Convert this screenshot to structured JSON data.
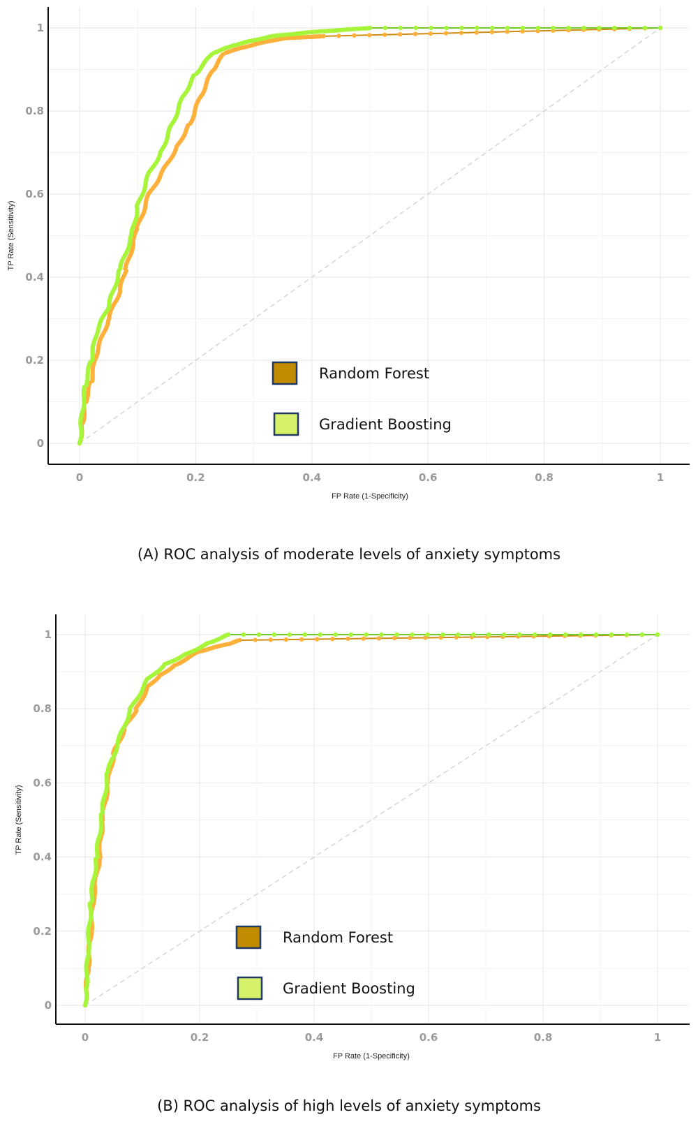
{
  "chart_data": [
    {
      "type": "line",
      "caption": "(A) ROC analysis of moderate levels of anxiety symptoms",
      "xlabel": "FP Rate (1-Specificity)",
      "ylabel": "TP Rate (Sensitivity)",
      "xlim": [
        0,
        1
      ],
      "ylim": [
        0,
        1
      ],
      "xticks": [
        "0",
        "0.2",
        "0.4",
        "0.6",
        "0.8",
        "1"
      ],
      "yticks": [
        "0",
        "0.2",
        "0.4",
        "0.6",
        "0.8",
        "1"
      ],
      "grid": true,
      "legend_placement": "bottom-center",
      "reference_line": "diagonal dashed",
      "series": [
        {
          "name": "Random Forest",
          "color": "#FFB03B",
          "legend_color": "#C08B00",
          "x": [
            0,
            0.005,
            0.01,
            0.02,
            0.03,
            0.05,
            0.07,
            0.08,
            0.1,
            0.12,
            0.15,
            0.17,
            0.19,
            0.21,
            0.23,
            0.25,
            0.3,
            0.35,
            0.42,
            1
          ],
          "y": [
            0,
            0.05,
            0.1,
            0.15,
            0.22,
            0.3,
            0.37,
            0.42,
            0.52,
            0.6,
            0.67,
            0.72,
            0.77,
            0.84,
            0.9,
            0.94,
            0.96,
            0.975,
            0.98,
            1
          ]
        },
        {
          "name": "Gradient Boosting",
          "color": "#A6F53A",
          "legend_color": "#D6F26B",
          "x": [
            0,
            0.005,
            0.01,
            0.02,
            0.03,
            0.05,
            0.07,
            0.09,
            0.1,
            0.12,
            0.14,
            0.16,
            0.18,
            0.2,
            0.23,
            0.27,
            0.33,
            0.4,
            0.5,
            1
          ],
          "y": [
            0,
            0.08,
            0.14,
            0.2,
            0.27,
            0.33,
            0.42,
            0.5,
            0.57,
            0.65,
            0.7,
            0.77,
            0.84,
            0.89,
            0.94,
            0.96,
            0.98,
            0.99,
            1,
            1
          ]
        }
      ]
    },
    {
      "type": "line",
      "caption": "(B) ROC analysis of high levels of anxiety symptoms",
      "xlabel": "FP Rate (1-Specificity)",
      "ylabel": "TP Rate (Sensitivity)",
      "xlim": [
        0,
        1
      ],
      "ylim": [
        0,
        1
      ],
      "xticks": [
        "0",
        "0.2",
        "0.4",
        "0.6",
        "0.8",
        "1"
      ],
      "yticks": [
        "0",
        "0.2",
        "0.4",
        "0.6",
        "0.8",
        "1"
      ],
      "grid": true,
      "legend_placement": "bottom-center",
      "reference_line": "diagonal dashed",
      "series": [
        {
          "name": "Random Forest",
          "color": "#FFB03B",
          "legend_color": "#C08B00",
          "x": [
            0,
            0.005,
            0.01,
            0.015,
            0.025,
            0.03,
            0.04,
            0.05,
            0.07,
            0.09,
            0.11,
            0.13,
            0.16,
            0.2,
            0.25,
            0.27,
            1
          ],
          "y": [
            0,
            0.1,
            0.2,
            0.3,
            0.4,
            0.5,
            0.6,
            0.68,
            0.75,
            0.8,
            0.86,
            0.89,
            0.92,
            0.955,
            0.975,
            0.985,
            1
          ]
        },
        {
          "name": "Gradient Boosting",
          "color": "#A6F53A",
          "legend_color": "#D6F26B",
          "x": [
            0,
            0.002,
            0.005,
            0.01,
            0.02,
            0.03,
            0.04,
            0.06,
            0.08,
            0.11,
            0.14,
            0.18,
            0.22,
            0.25,
            1
          ],
          "y": [
            0,
            0.05,
            0.15,
            0.28,
            0.4,
            0.52,
            0.63,
            0.72,
            0.8,
            0.88,
            0.92,
            0.95,
            0.98,
            1,
            1
          ]
        }
      ]
    }
  ]
}
